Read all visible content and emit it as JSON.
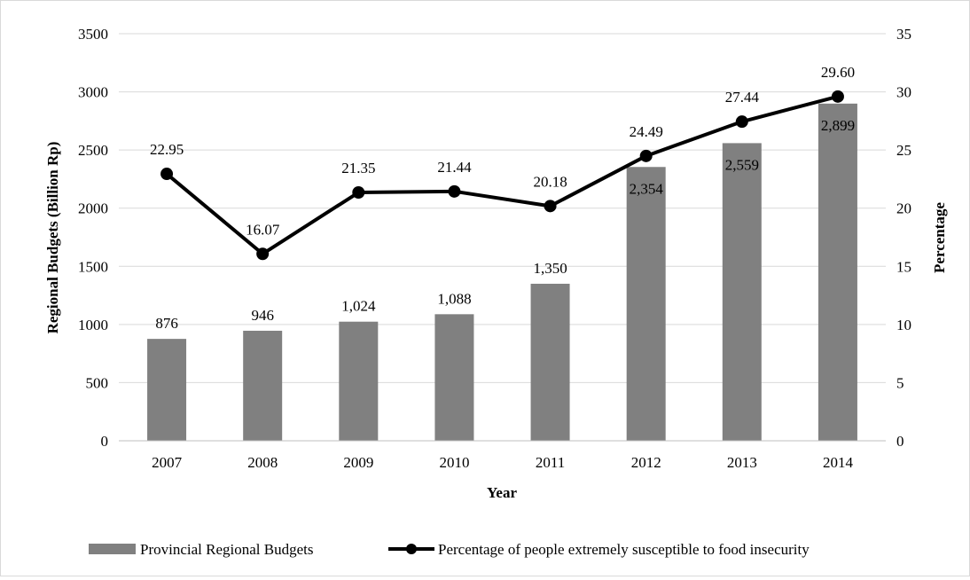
{
  "chart_data": {
    "type": "bar+line",
    "categories": [
      "2007",
      "2008",
      "2009",
      "2010",
      "2011",
      "2012",
      "2013",
      "2014"
    ],
    "series": [
      {
        "name": "Provincial Regional Budgets",
        "type": "bar",
        "axis": "left",
        "values": [
          876,
          946,
          1024,
          1088,
          1350,
          2354,
          2559,
          2899
        ],
        "labels": [
          "876",
          "946",
          "1,024",
          "1,088",
          "1,350",
          "2,354",
          "2,559",
          "2,899"
        ],
        "color": "#808080"
      },
      {
        "name": "Percentage of people extremely susceptible to food insecurity",
        "type": "line",
        "axis": "right",
        "values": [
          22.95,
          16.07,
          21.35,
          21.44,
          20.18,
          24.49,
          27.44,
          29.6
        ],
        "labels": [
          "22.95",
          "16.07",
          "21.35",
          "21.44",
          "20.18",
          "24.49",
          "27.44",
          "29.60"
        ],
        "color": "#000000"
      }
    ],
    "xlabel": "Year",
    "ylabel_left": "Regional Budgets (Billion Rp)",
    "ylabel_right": "Percentage",
    "ylim_left": [
      0,
      3500
    ],
    "ylim_right": [
      0,
      35
    ],
    "yticks_left": [
      "0",
      "500",
      "1000",
      "1500",
      "2000",
      "2500",
      "3000",
      "3500"
    ],
    "yticks_right": [
      "0",
      "5",
      "10",
      "15",
      "20",
      "25",
      "30",
      "35"
    ],
    "grid": true,
    "legend_position": "bottom"
  }
}
